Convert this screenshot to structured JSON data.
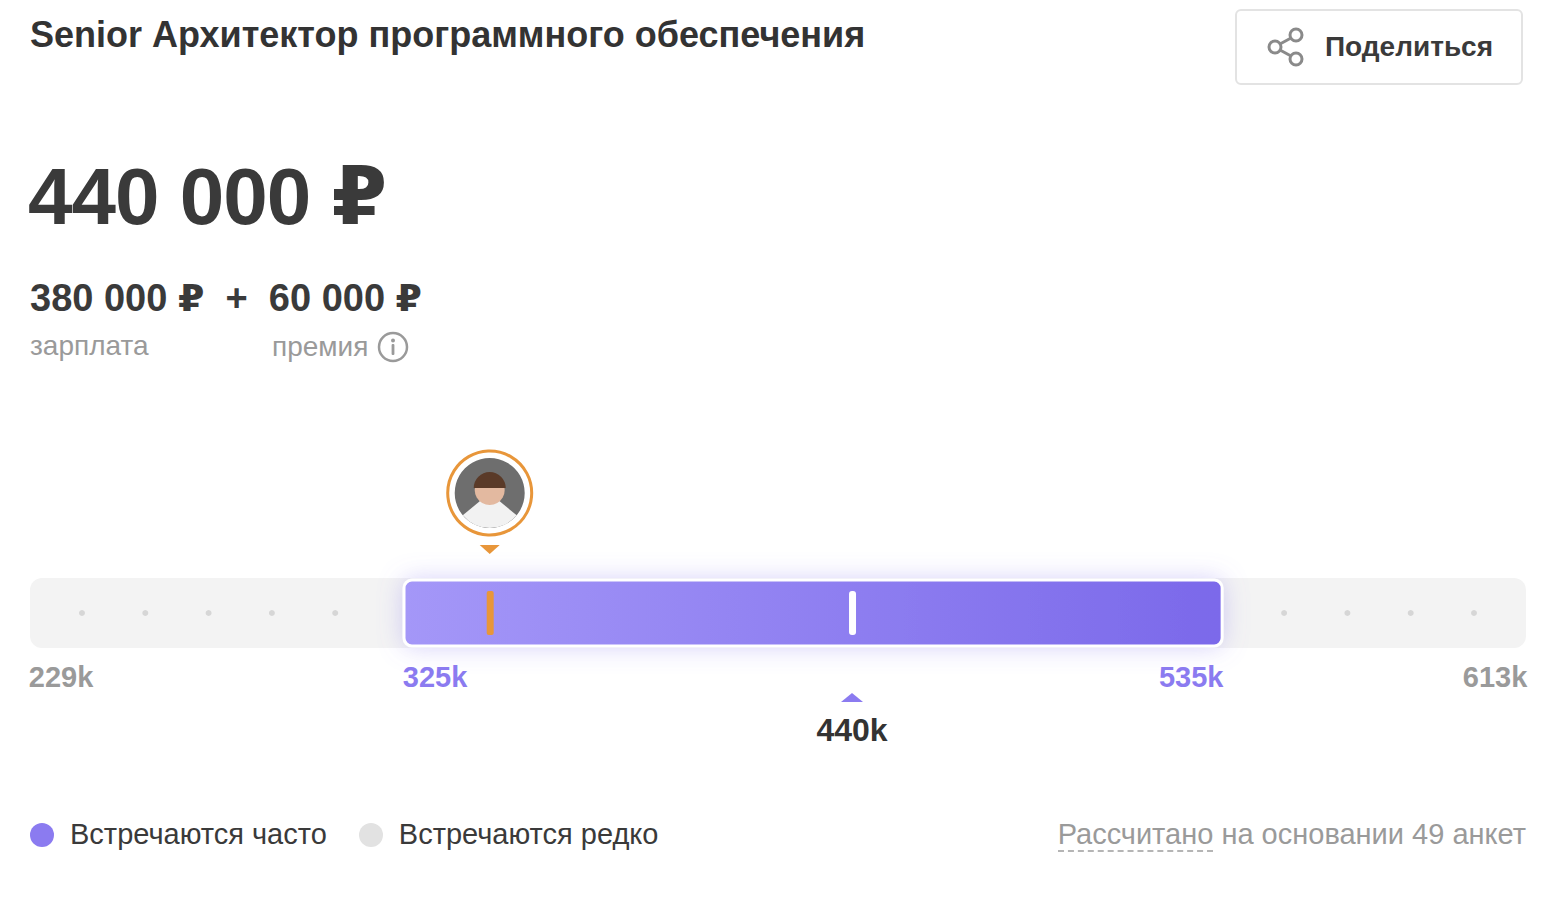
{
  "header": {
    "title": "Senior Архитектор программного обеспечения",
    "share": "Поделиться",
    "total": "440 000 ₽",
    "salary": "380 000 ₽",
    "plus": "+",
    "bonus": "60 000 ₽",
    "salary_label": "зарплата",
    "bonus_label": "премия"
  },
  "chart_data": {
    "type": "range",
    "xlim": [
      229,
      613
    ],
    "xticks": [
      {
        "value": 229,
        "label": "229k"
      },
      {
        "value": 325,
        "label": "325k"
      },
      {
        "value": 535,
        "label": "535k"
      },
      {
        "value": 613,
        "label": "613k"
      }
    ],
    "range": [
      325,
      535
    ],
    "median": {
      "value": 440,
      "label": "440k"
    },
    "user_value": 347,
    "color": "#8b7bf0",
    "frequency_key": [
      {
        "label": "Встречаются часто",
        "color": "#8b7bf0"
      },
      {
        "label": "Встречаются редко",
        "color": "#e2e2e2"
      }
    ],
    "note": [
      "Рассчитано",
      "на основании 49 анкет"
    ],
    "tick_labels": "x"
  }
}
